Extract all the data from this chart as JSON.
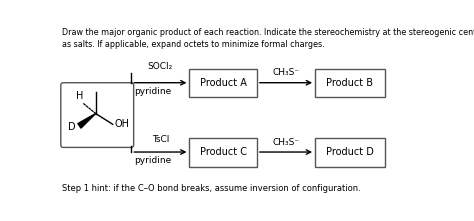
{
  "background_color": "#ffffff",
  "title_text": "Draw the major organic product of each reaction. Indicate the stereochemistry at the stereogenic center. Omit byproducts such\nas salts. If applicable, expand octets to minimize formal charges.",
  "hint_text": "Step 1 hint: if the C–O bond breaks, assume inversion of configuration.",
  "row1_reagent1": "SOCl₂",
  "row1_reagent1b": "pyridine",
  "row1_reagent2": "CH₃S⁻",
  "row1_product_a": "Product A",
  "row1_product_b": "Product B",
  "row2_reagent1": "TsCl",
  "row2_reagent1b": "pyridine",
  "row2_reagent2": "CH₃S⁻",
  "row2_product_c": "Product C",
  "row2_product_d": "Product D",
  "text_color": "#000000",
  "fs_title": 5.8,
  "fs_label": 7.0,
  "fs_reagent": 6.5,
  "fs_hint": 6.0,
  "fs_mol": 7.0
}
